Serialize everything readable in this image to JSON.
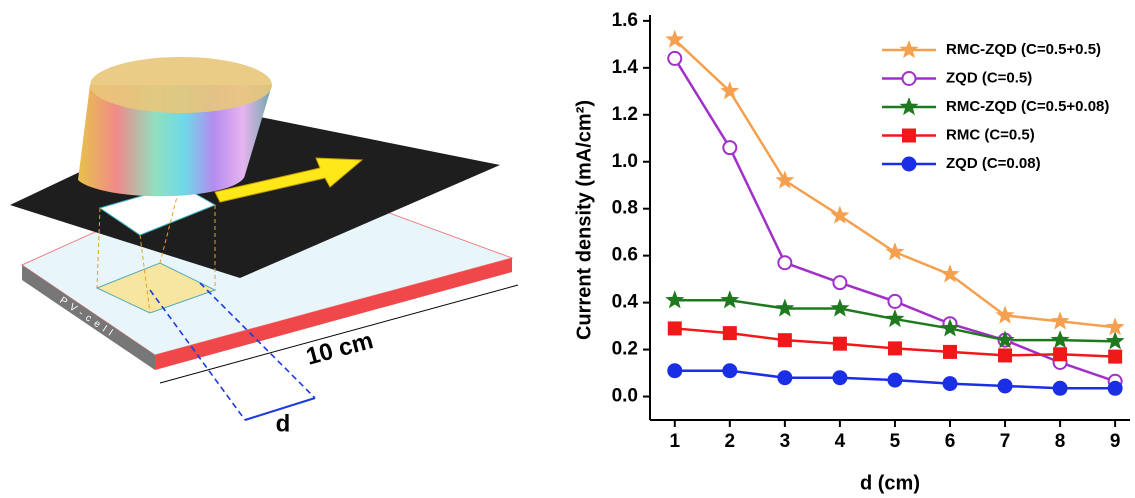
{
  "diagram": {
    "pv_label": "PV-cell",
    "length_label": "10 cm",
    "d_label": "d"
  },
  "chart_data": {
    "type": "line",
    "x_label": "d (cm)",
    "y_label": "Current density (mA/cm²)",
    "x": [
      1,
      2,
      3,
      4,
      5,
      6,
      7,
      8,
      9
    ],
    "xlim": [
      0.55,
      9.27
    ],
    "xticks": [
      1,
      2,
      3,
      4,
      5,
      6,
      7,
      8,
      9
    ],
    "ylim": [
      -0.1,
      1.625
    ],
    "yticks": [
      {
        "value": 0,
        "label": "0.0"
      },
      0.2,
      0.4,
      0.6,
      0.8,
      {
        "value": 1,
        "label": "1.0"
      },
      1.2,
      1.4,
      1.6
    ],
    "grid": false,
    "legend": "upper right",
    "series": [
      {
        "name": "RMC-ZQD (C=0.5+0.5)",
        "color": "#f5a04e",
        "marker": "star",
        "values": [
          1.52,
          1.3,
          0.92,
          0.77,
          0.615,
          0.52,
          0.345,
          0.32,
          0.295
        ]
      },
      {
        "name": "ZQD (C=0.5)",
        "color": "#a030c8",
        "marker": "open-circle",
        "values": [
          1.44,
          1.06,
          0.57,
          0.485,
          0.405,
          0.31,
          0.24,
          0.145,
          0.065
        ]
      },
      {
        "name": "RMC-ZQD (C=0.5+0.08)",
        "color": "#1f7a1f",
        "marker": "star",
        "values": [
          0.41,
          0.41,
          0.375,
          0.375,
          0.33,
          0.29,
          0.24,
          0.24,
          0.235
        ]
      },
      {
        "name": "RMC (C=0.5)",
        "color": "#f01818",
        "marker": "square",
        "values": [
          0.29,
          0.27,
          0.24,
          0.225,
          0.205,
          0.19,
          0.175,
          0.18,
          0.17
        ]
      },
      {
        "name": "ZQD (C=0.08)",
        "color": "#1a2ee6",
        "marker": "circle",
        "values": [
          0.11,
          0.11,
          0.08,
          0.08,
          0.07,
          0.055,
          0.045,
          0.035,
          0.035
        ]
      }
    ]
  }
}
